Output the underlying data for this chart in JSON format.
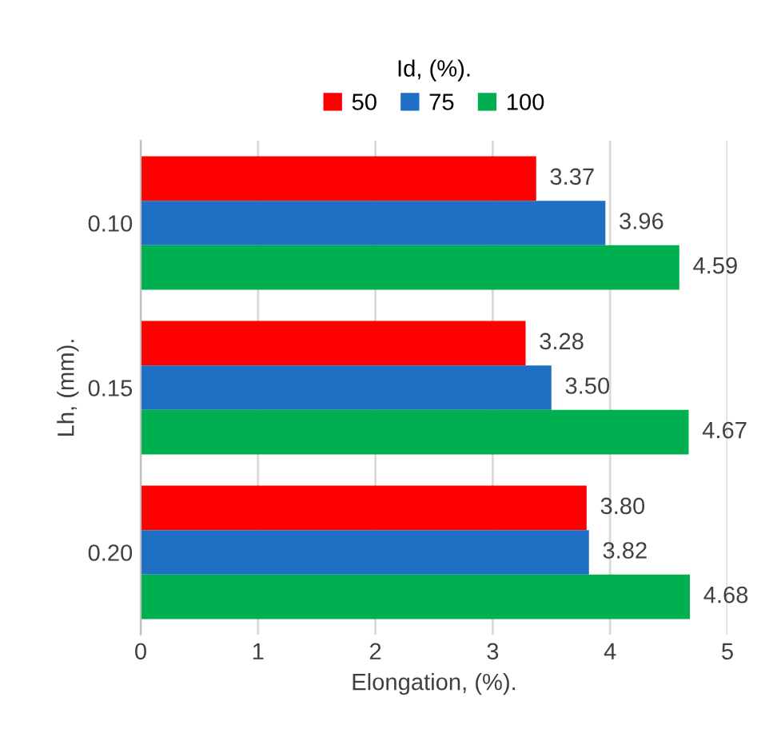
{
  "chart_data": {
    "type": "bar",
    "orientation": "horizontal",
    "legend_title": "Id, (%).",
    "xlabel": "Elongation, (%).",
    "ylabel": "Lh, (mm).",
    "categories": [
      "0.10",
      "0.15",
      "0.20"
    ],
    "series": [
      {
        "name": "50",
        "color": "#ff0000",
        "values": [
          3.37,
          3.28,
          3.8
        ],
        "value_labels": [
          "3.37",
          "3.28",
          "3.80"
        ]
      },
      {
        "name": "75",
        "color": "#1f6fc5",
        "values": [
          3.96,
          3.5,
          3.82
        ],
        "value_labels": [
          "3.96",
          "3.50",
          "3.82"
        ]
      },
      {
        "name": "100",
        "color": "#00b050",
        "values": [
          4.59,
          4.67,
          4.68
        ],
        "value_labels": [
          "4.59",
          "4.67",
          "4.68"
        ]
      }
    ],
    "xlim": [
      0,
      5
    ],
    "xticks": [
      0,
      1,
      2,
      3,
      4,
      5
    ],
    "grid": "x",
    "legend": "top"
  }
}
